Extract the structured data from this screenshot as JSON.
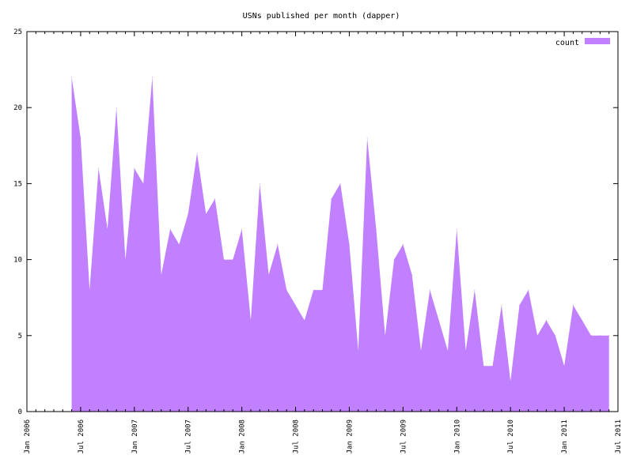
{
  "chart_data": {
    "type": "area",
    "title": "USNs published per month (dapper)",
    "xlabel": "",
    "ylabel": "",
    "ylim": [
      0,
      25
    ],
    "xlim": [
      "2006-01",
      "2011-07"
    ],
    "grid": false,
    "legend_position": "top-right",
    "x_tick_labels": [
      "Jan 2006",
      "Jul 2006",
      "Jan 2007",
      "Jul 2007",
      "Jan 2008",
      "Jul 2008",
      "Jan 2009",
      "Jul 2009",
      "Jan 2010",
      "Jul 2010",
      "Jan 2011",
      "Jul 2011"
    ],
    "y_tick_labels": [
      "0",
      "5",
      "10",
      "15",
      "20",
      "25"
    ],
    "series": [
      {
        "name": "count",
        "color": "#c080ff",
        "x": [
          "2006-06",
          "2006-07",
          "2006-08",
          "2006-09",
          "2006-10",
          "2006-11",
          "2006-12",
          "2007-01",
          "2007-02",
          "2007-03",
          "2007-04",
          "2007-05",
          "2007-06",
          "2007-07",
          "2007-08",
          "2007-09",
          "2007-10",
          "2007-11",
          "2007-12",
          "2008-01",
          "2008-02",
          "2008-03",
          "2008-04",
          "2008-05",
          "2008-06",
          "2008-07",
          "2008-08",
          "2008-09",
          "2008-10",
          "2008-11",
          "2008-12",
          "2009-01",
          "2009-02",
          "2009-03",
          "2009-04",
          "2009-05",
          "2009-06",
          "2009-07",
          "2009-08",
          "2009-09",
          "2009-10",
          "2009-11",
          "2009-12",
          "2010-01",
          "2010-02",
          "2010-03",
          "2010-04",
          "2010-05",
          "2010-06",
          "2010-07",
          "2010-08",
          "2010-09",
          "2010-10",
          "2010-11",
          "2010-12",
          "2011-01",
          "2011-02",
          "2011-03",
          "2011-04",
          "2011-05",
          "2011-06"
        ],
        "values": [
          22,
          18,
          8,
          16,
          12,
          20,
          10,
          16,
          15,
          22,
          9,
          12,
          11,
          13,
          17,
          13,
          14,
          10,
          10,
          12,
          6,
          15,
          9,
          11,
          8,
          7,
          6,
          8,
          8,
          14,
          15,
          11,
          4,
          18,
          12,
          5,
          10,
          11,
          9,
          4,
          8,
          6,
          4,
          12,
          4,
          8,
          3,
          3,
          7,
          2,
          7,
          8,
          5,
          6,
          5,
          3,
          7,
          6,
          5,
          5,
          5
        ]
      }
    ]
  }
}
